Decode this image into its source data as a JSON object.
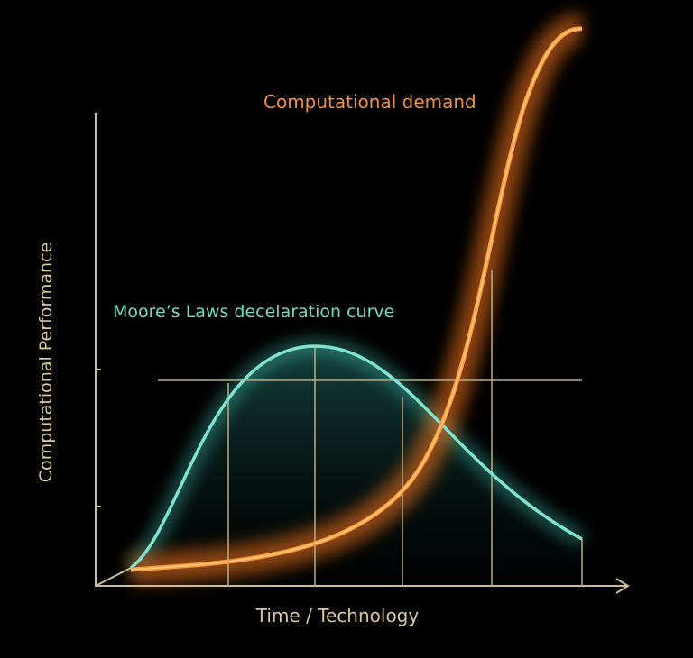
{
  "diagram": {
    "demand_label": "Computational demand",
    "moore_label": "Moore’s Laws decelaration curve",
    "y_axis_label": "Computational Performance",
    "x_axis_label": "Time / Technology"
  }
}
